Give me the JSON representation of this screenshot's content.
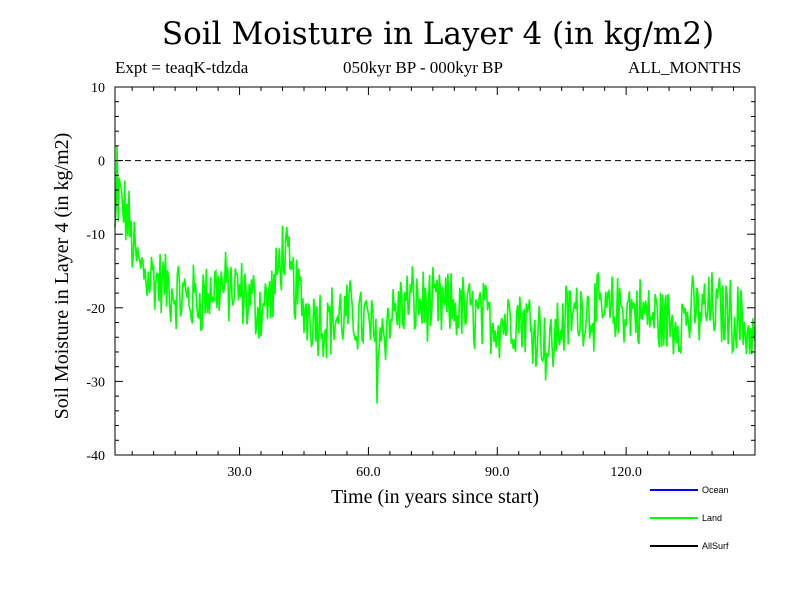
{
  "chart_data": {
    "type": "line",
    "title": "Soil Moisture in Layer 4 (in kg/m2)",
    "experiment": "Expt = teaqK-tdzda",
    "period": "050kyr BP - 000kyr BP",
    "months": "ALL_MONTHS",
    "xlabel": "Time (in years since start)",
    "ylabel": "Soil Moisture in Layer 4 (in kg/m2)",
    "xlim": [
      1,
      150
    ],
    "ylim": [
      -40,
      10
    ],
    "x_ticks": [
      30,
      60,
      90,
      120
    ],
    "x_tick_labels": [
      "30.0",
      "60.0",
      "90.0",
      "120.0"
    ],
    "y_ticks": [
      -40,
      -30,
      -20,
      -10,
      0,
      10
    ],
    "y_tick_labels": [
      "-40",
      "-30",
      "-20",
      "-10",
      "0",
      "10"
    ],
    "reference_line": 0,
    "legend": [
      {
        "name": "Ocean",
        "color": "#0000ff"
      },
      {
        "name": "Land",
        "color": "#00ff00"
      },
      {
        "name": "AllSurf",
        "color": "#000000"
      }
    ],
    "series": [
      {
        "name": "Land",
        "color": "#00ff00",
        "step": 0.25,
        "x_start": 1,
        "trend_x": [
          1,
          2,
          4,
          6,
          10,
          15,
          20,
          25,
          30,
          35,
          38,
          40,
          42,
          45,
          50,
          55,
          60,
          62,
          65,
          70,
          75,
          80,
          85,
          90,
          95,
          100,
          102,
          105,
          110,
          115,
          120,
          125,
          130,
          135,
          140,
          145,
          150
        ],
        "trend_y": [
          -10,
          -5,
          -8,
          -14,
          -16,
          -18,
          -19,
          -17,
          -18,
          -20,
          -18,
          -12,
          -16,
          -20,
          -22,
          -21,
          -22,
          -25,
          -21,
          -19,
          -20,
          -20,
          -21,
          -22,
          -21,
          -23,
          -26,
          -22,
          -20,
          -21,
          -20,
          -21,
          -22,
          -21,
          -20,
          -21,
          -24
        ],
        "noise_amp": 4.5,
        "min": -33,
        "max": 2,
        "min_at": 62,
        "max_at": 1.5
      }
    ]
  }
}
